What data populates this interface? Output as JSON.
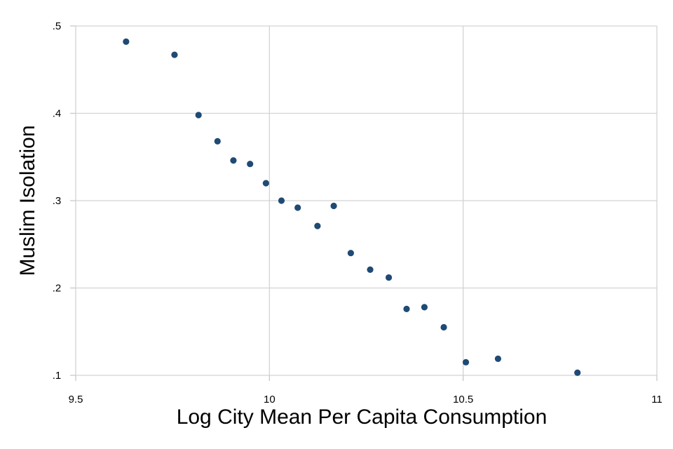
{
  "chart_data": {
    "type": "scatter",
    "title": "",
    "xlabel": "Log City Mean Per Capita Consumption",
    "ylabel": "Muslim Isolation",
    "xlim": [
      9.5,
      11
    ],
    "ylim": [
      0.1,
      0.5
    ],
    "x_ticks": [
      {
        "value": 9.5,
        "label": "9.5"
      },
      {
        "value": 10,
        "label": "10"
      },
      {
        "value": 10.5,
        "label": "10.5"
      },
      {
        "value": 11,
        "label": "11"
      }
    ],
    "y_ticks": [
      {
        "value": 0.1,
        "label": ".1"
      },
      {
        "value": 0.2,
        "label": ".2"
      },
      {
        "value": 0.3,
        "label": ".3"
      },
      {
        "value": 0.4,
        "label": ".4"
      },
      {
        "value": 0.5,
        "label": ".5"
      }
    ],
    "grid": true,
    "marker_color": "#1f4a75",
    "points": [
      {
        "x": 9.63,
        "y": 0.482
      },
      {
        "x": 9.755,
        "y": 0.467
      },
      {
        "x": 9.817,
        "y": 0.398
      },
      {
        "x": 9.866,
        "y": 0.368
      },
      {
        "x": 9.907,
        "y": 0.346
      },
      {
        "x": 9.95,
        "y": 0.342
      },
      {
        "x": 9.991,
        "y": 0.32
      },
      {
        "x": 10.031,
        "y": 0.3
      },
      {
        "x": 10.073,
        "y": 0.292
      },
      {
        "x": 10.124,
        "y": 0.271
      },
      {
        "x": 10.166,
        "y": 0.294
      },
      {
        "x": 10.21,
        "y": 0.24
      },
      {
        "x": 10.26,
        "y": 0.221
      },
      {
        "x": 10.308,
        "y": 0.212
      },
      {
        "x": 10.354,
        "y": 0.176
      },
      {
        "x": 10.4,
        "y": 0.178
      },
      {
        "x": 10.45,
        "y": 0.155
      },
      {
        "x": 10.507,
        "y": 0.115
      },
      {
        "x": 10.59,
        "y": 0.119
      },
      {
        "x": 10.795,
        "y": 0.103
      }
    ]
  }
}
